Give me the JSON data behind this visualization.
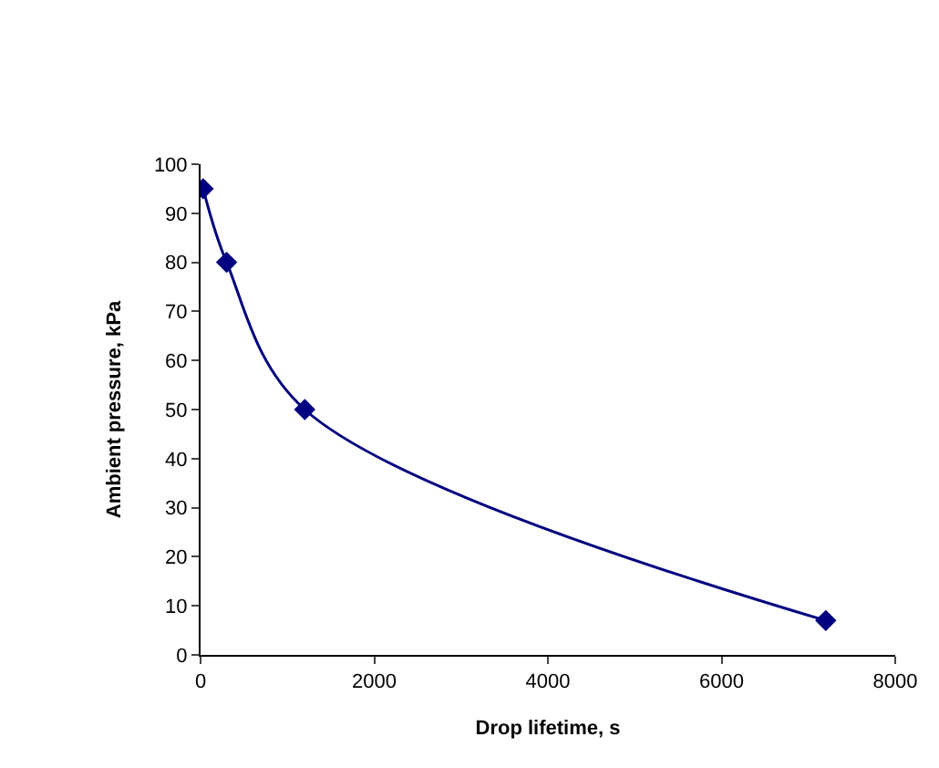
{
  "chart_data": {
    "type": "line",
    "xlabel": "Drop lifetime, s",
    "ylabel": "Ambient pressure, kPa",
    "x": [
      30,
      300,
      1200,
      7200
    ],
    "series": [
      {
        "color": "#000080",
        "values": [
          95,
          80,
          50,
          7
        ]
      }
    ],
    "xlim": [
      0,
      8000
    ],
    "xticks": [
      0,
      2000,
      4000,
      6000,
      8000
    ],
    "ylim": [
      0,
      100
    ],
    "yticks": [
      0,
      10,
      20,
      30,
      40,
      50,
      60,
      70,
      80,
      90,
      100
    ],
    "grid": false,
    "legend": false,
    "marker": "diamond",
    "line_style": "solid"
  }
}
